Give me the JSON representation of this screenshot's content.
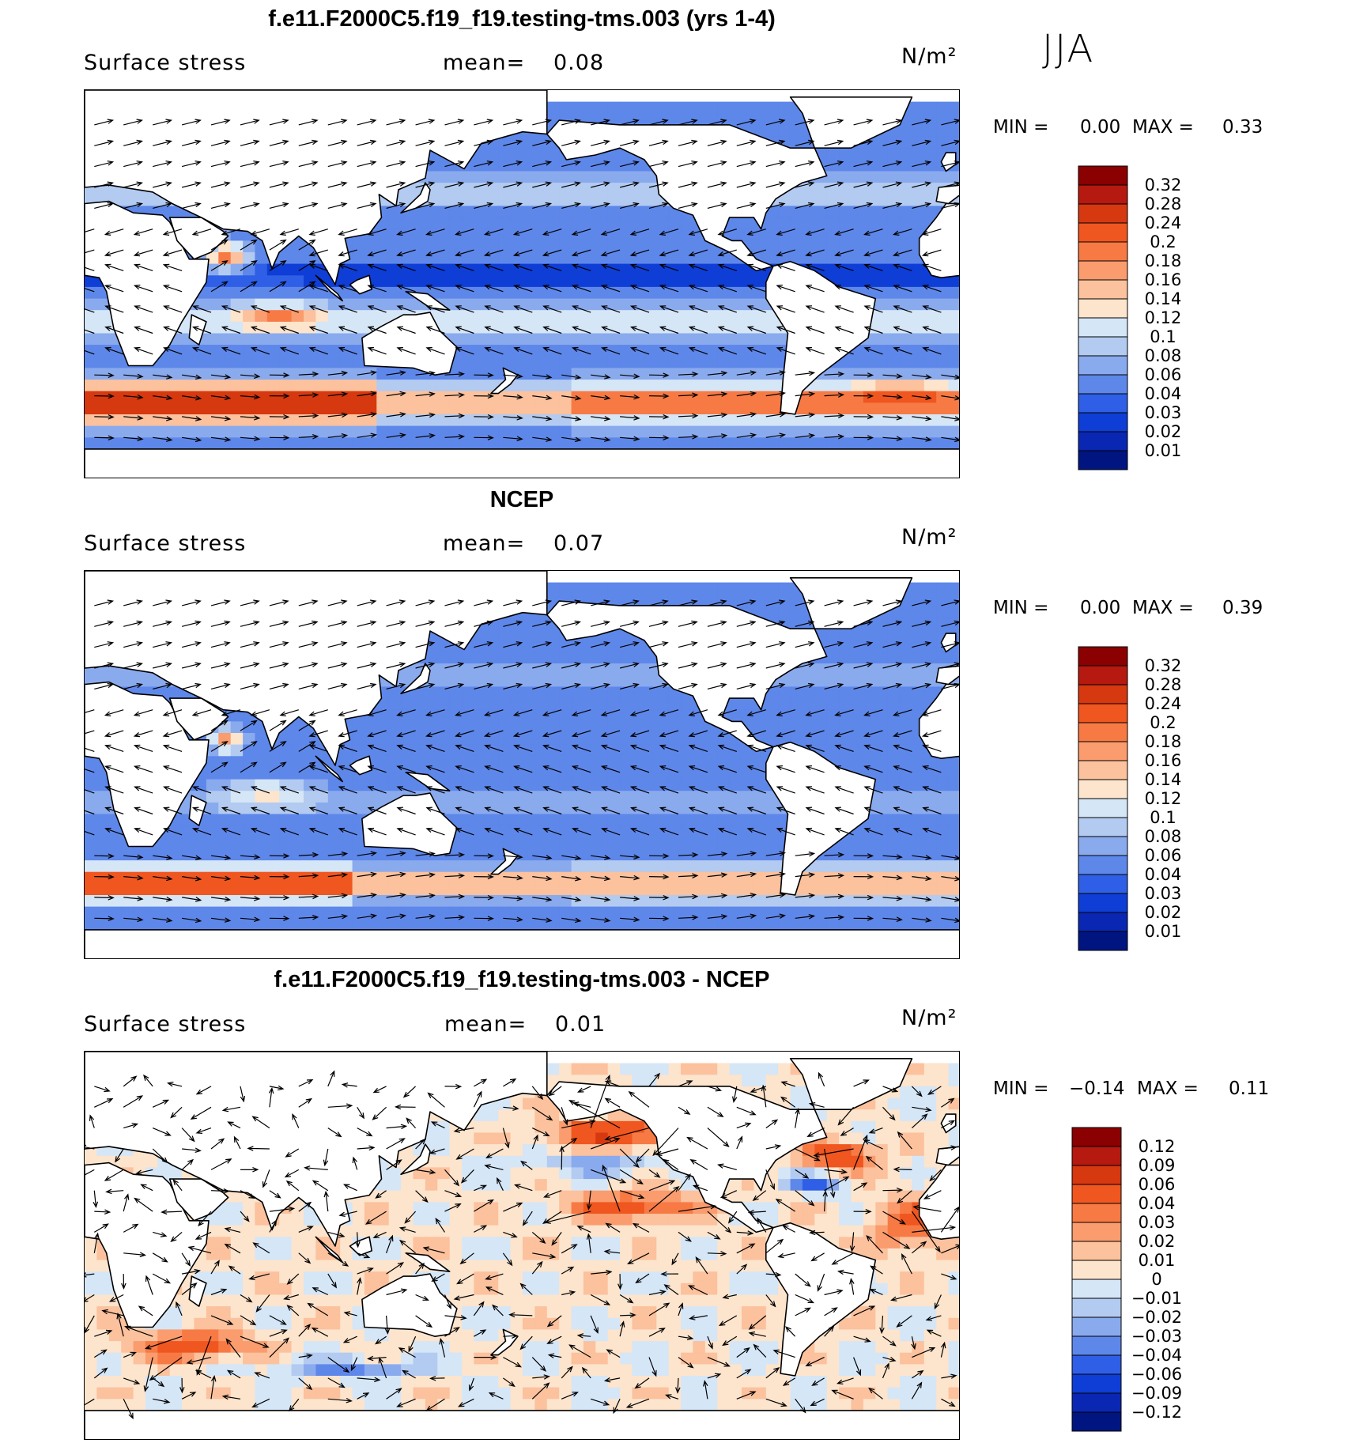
{
  "season": "JJA",
  "panels": [
    {
      "title": "f.e11.F2000C5.f19_f19.testing-tms.003 (yrs 1-4)",
      "variable": "Surface stress",
      "mean_label": "mean=",
      "mean_value": "0.08",
      "units": "N/m²",
      "min_label": "MIN =",
      "min_value": "0.00",
      "max_label": "MAX =",
      "max_value": "0.33",
      "colorbar_labels": [
        "0.32",
        "0.28",
        "0.24",
        "0.2",
        "0.18",
        "0.16",
        "0.14",
        "0.12",
        "0.1",
        "0.08",
        "0.06",
        "0.04",
        "0.03",
        "0.02",
        "0.01"
      ],
      "colorbar_colors": [
        "#8b0000",
        "#b5190f",
        "#d63810",
        "#f0561f",
        "#f77a45",
        "#fa9c6e",
        "#fcc19d",
        "#fde4cc",
        "#d5e6f7",
        "#b3cbf0",
        "#8aaaee",
        "#5e87ea",
        "#2e5fe6",
        "#0f3ed6",
        "#0a27b3",
        "#001580"
      ]
    },
    {
      "title": "NCEP",
      "variable": "Surface stress",
      "mean_label": "mean=",
      "mean_value": "0.07",
      "units": "N/m²",
      "min_label": "MIN =",
      "min_value": "0.00",
      "max_label": "MAX =",
      "max_value": "0.39",
      "colorbar_labels": [
        "0.32",
        "0.28",
        "0.24",
        "0.2",
        "0.18",
        "0.16",
        "0.14",
        "0.12",
        "0.1",
        "0.08",
        "0.06",
        "0.04",
        "0.03",
        "0.02",
        "0.01"
      ],
      "colorbar_colors": [
        "#8b0000",
        "#b5190f",
        "#d63810",
        "#f0561f",
        "#f77a45",
        "#fa9c6e",
        "#fcc19d",
        "#fde4cc",
        "#d5e6f7",
        "#b3cbf0",
        "#8aaaee",
        "#5e87ea",
        "#2e5fe6",
        "#0f3ed6",
        "#0a27b3",
        "#001580"
      ]
    },
    {
      "title": "f.e11.F2000C5.f19_f19.testing-tms.003 - NCEP",
      "variable": "Surface stress",
      "mean_label": "mean=",
      "mean_value": "0.01",
      "units": "N/m²",
      "min_label": "MIN =",
      "min_value": "−0.14",
      "max_label": "MAX =",
      "max_value": "0.11",
      "colorbar_labels": [
        "0.12",
        "0.09",
        "0.06",
        "0.04",
        "0.03",
        "0.02",
        "0.01",
        "0",
        "−0.01",
        "−0.02",
        "−0.03",
        "−0.04",
        "−0.06",
        "−0.09",
        "−0.12"
      ],
      "colorbar_colors": [
        "#8b0000",
        "#b5190f",
        "#d63810",
        "#f0561f",
        "#f77a45",
        "#fa9c6e",
        "#fcc19d",
        "#fde4cc",
        "#d5e6f7",
        "#b3cbf0",
        "#8aaaee",
        "#5e87ea",
        "#2e5fe6",
        "#0f3ed6",
        "#0a27b3",
        "#001580"
      ]
    }
  ]
}
